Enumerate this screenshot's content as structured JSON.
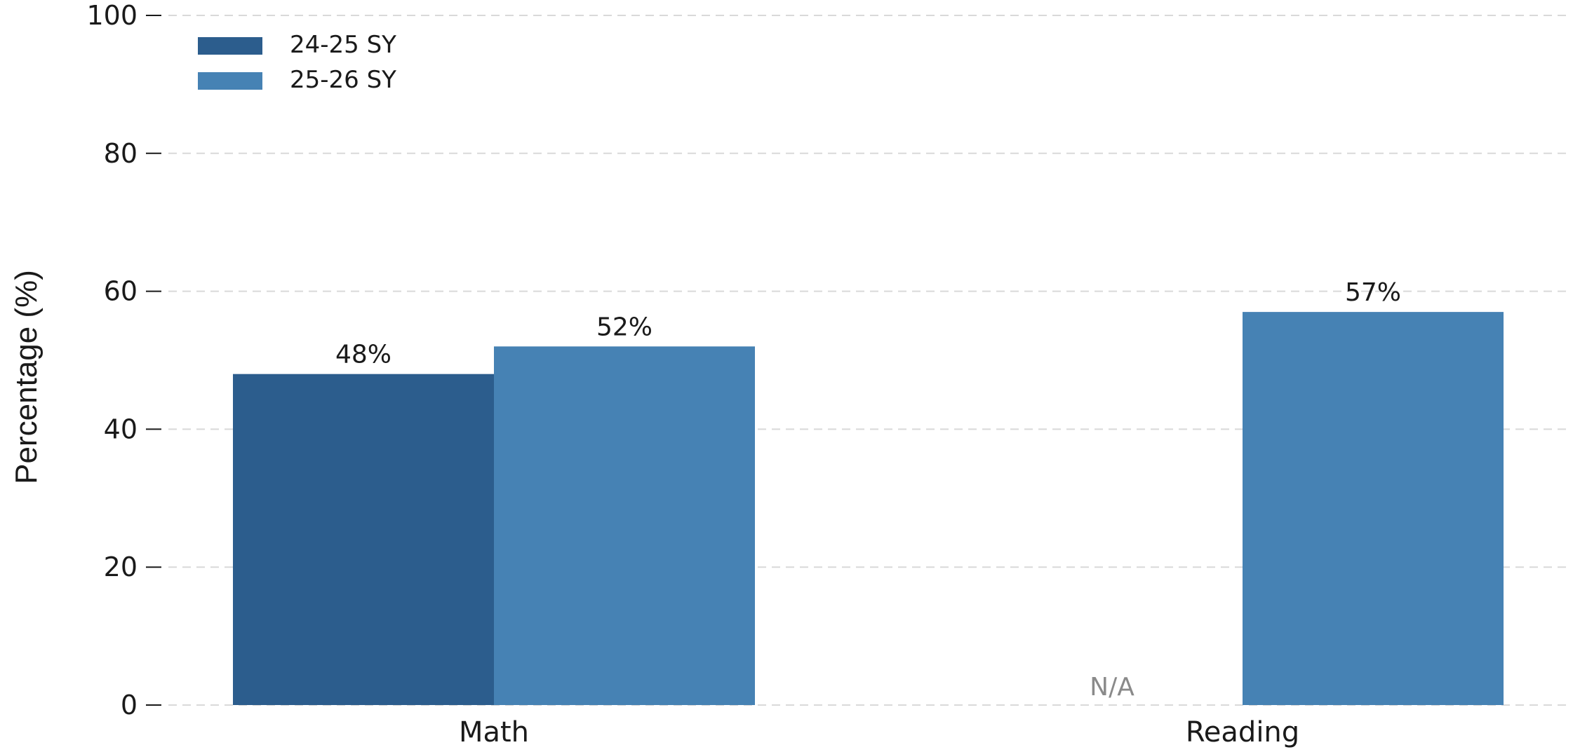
{
  "chart_data": {
    "type": "bar",
    "title": "",
    "xlabel": "",
    "ylabel": "Percentage (%)",
    "ylim": [
      0,
      100
    ],
    "yticks": [
      0,
      20,
      40,
      60,
      80,
      100
    ],
    "categories": [
      "Math",
      "Reading"
    ],
    "series": [
      {
        "name": "24-25 SY",
        "color": "#2c5d8d",
        "values": [
          48,
          null
        ],
        "labels": [
          "48%",
          "N/A"
        ]
      },
      {
        "name": "25-26 SY",
        "color": "#4682b4",
        "values": [
          52,
          57
        ],
        "labels": [
          "52%",
          "57%"
        ]
      }
    ],
    "grid": true,
    "grid_style": "dashed-horizontal",
    "legend_position": "top-left"
  }
}
